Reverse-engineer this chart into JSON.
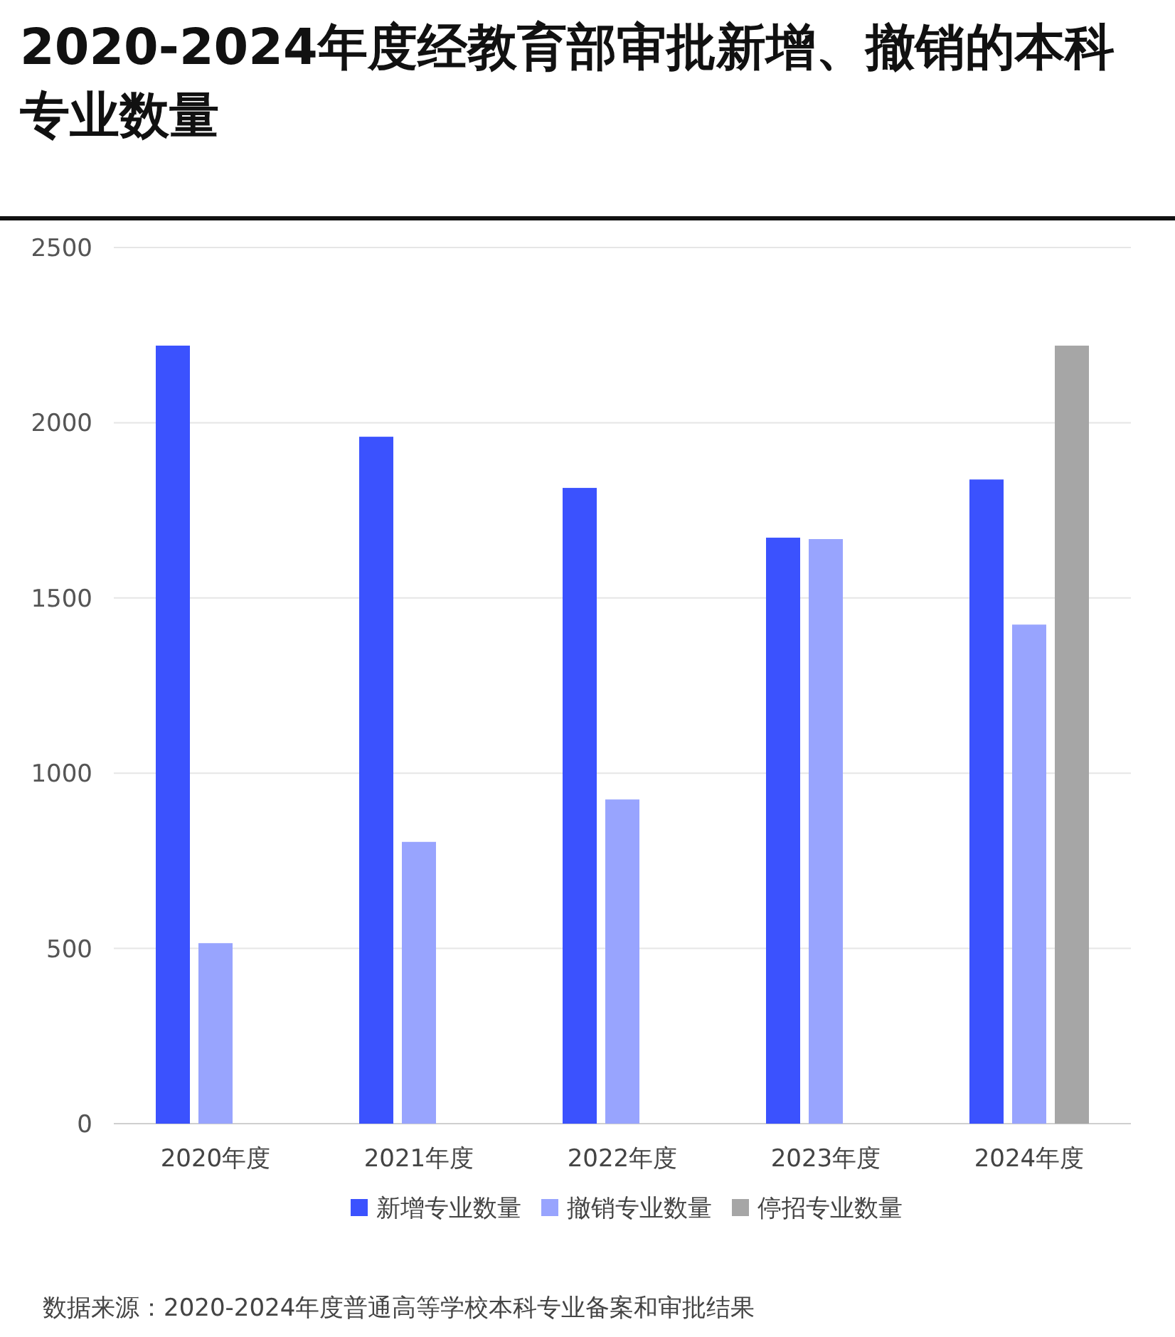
{
  "chart_data": {
    "type": "bar",
    "title": "2020-2024年度经教育部审批新增、撤销的本科专业数量",
    "categories": [
      "2020年度",
      "2021年度",
      "2022年度",
      "2023年度",
      "2024年度"
    ],
    "series": [
      {
        "name": "新增专业数量",
        "color": "#3b52fe",
        "values": [
          2220,
          1960,
          1814,
          1672,
          1838
        ]
      },
      {
        "name": "撤销专业数量",
        "color": "#98a4fe",
        "values": [
          515,
          804,
          925,
          1668,
          1424
        ]
      },
      {
        "name": "停招专业数量",
        "color": "#a6a6a6",
        "values": [
          null,
          null,
          null,
          null,
          2220
        ]
      }
    ],
    "ylim": [
      0,
      2500
    ],
    "yticks": [
      0,
      500,
      1000,
      1500,
      2000,
      2500
    ],
    "grid": "y",
    "legend": "bottom",
    "annotations": [
      "数据来源：2020-2024年度普通高等学校本科专业备案和审批结果"
    ]
  }
}
